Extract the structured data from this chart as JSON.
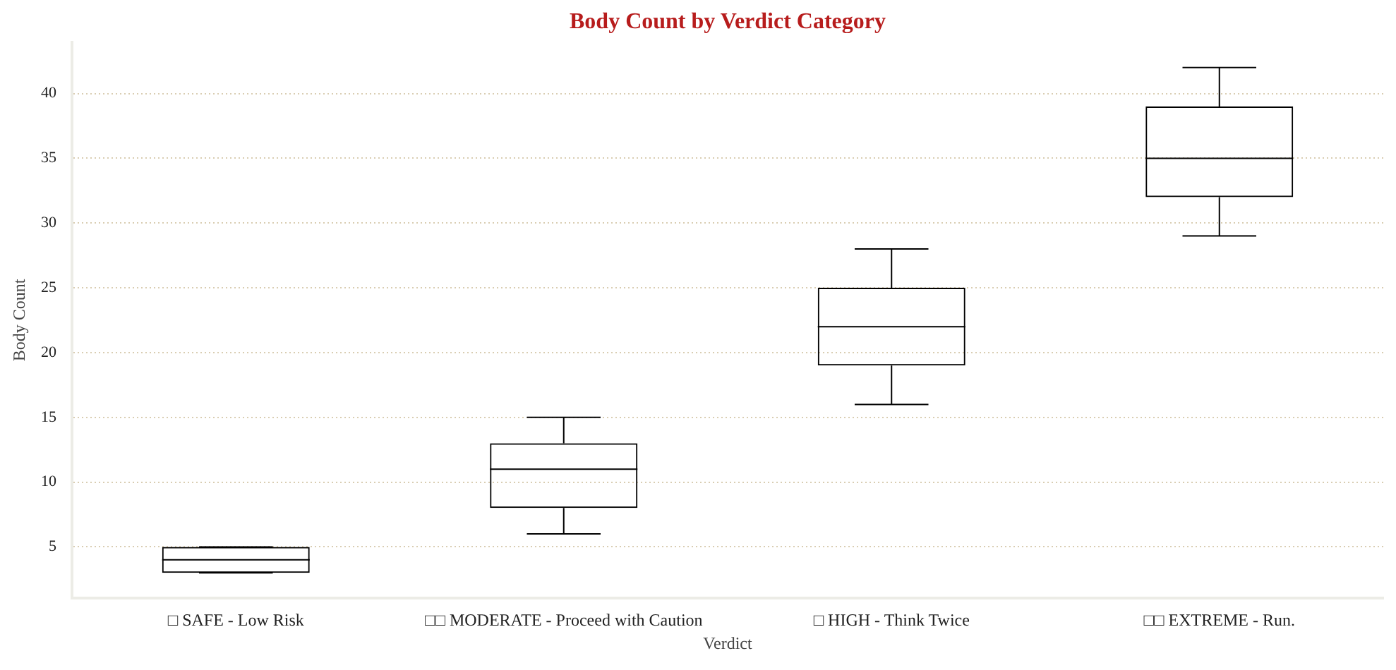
{
  "chart_data": {
    "type": "box",
    "title": "Body Count by Verdict Category",
    "xlabel": "Verdict",
    "ylabel": "Body Count",
    "categories": [
      "□ SAFE - Low Risk",
      "□□ MODERATE - Proceed with Caution",
      "□ HIGH - Think Twice",
      "□□ EXTREME - Run."
    ],
    "boxes": [
      {
        "low": 3,
        "q1": 3,
        "median": 4,
        "q3": 5,
        "high": 5
      },
      {
        "low": 6,
        "q1": 8,
        "median": 11,
        "q3": 13,
        "high": 15
      },
      {
        "low": 16,
        "q1": 19,
        "median": 22,
        "q3": 25,
        "high": 28
      },
      {
        "low": 29,
        "q1": 32,
        "median": 35,
        "q3": 39,
        "high": 42
      }
    ],
    "color": "#000000",
    "ylim": [
      1.05,
      43.95
    ],
    "yticks": [
      5,
      10,
      15,
      20,
      25,
      30,
      35,
      40
    ],
    "grid": "y"
  }
}
